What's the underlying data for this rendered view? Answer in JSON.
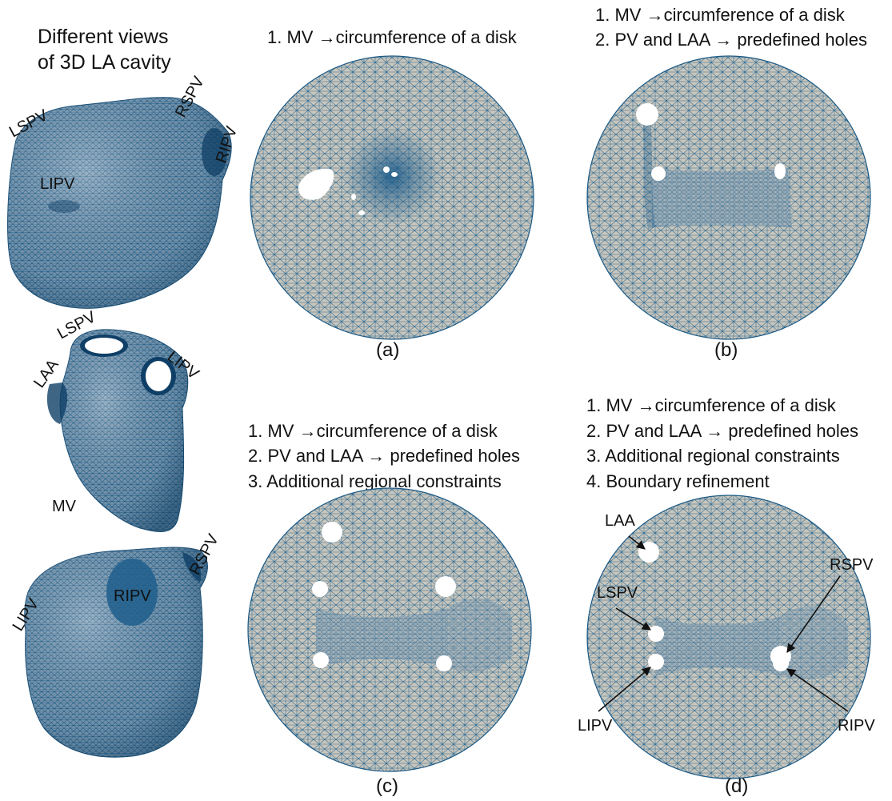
{
  "left_title": [
    "Different views",
    "of 3D LA cavity"
  ],
  "views": {
    "top": [
      "LSPV",
      "RSPV",
      "RIPV",
      "LIPV"
    ],
    "middle": [
      "LSPV",
      "LAA",
      "LIPV",
      "MV"
    ],
    "bottom": [
      "LIPV",
      "RSPV",
      "RIPV"
    ]
  },
  "panels": {
    "a": {
      "caption": "(a)",
      "steps": [
        "1. MV →circumference of a disk"
      ]
    },
    "b": {
      "caption": "(b)",
      "steps": [
        "1. MV →circumference of a disk",
        "2. PV and LAA → predefined holes"
      ]
    },
    "c": {
      "caption": "(c)",
      "steps": [
        "1. MV →circumference of a disk",
        "2. PV and LAA → predefined holes",
        "3. Additional regional constraints"
      ]
    },
    "d": {
      "caption": "(d)",
      "steps": [
        "1. MV →circumference of a disk",
        "2. PV and LAA → predefined holes",
        "3. Additional regional constraints",
        "4. Boundary refinement"
      ],
      "labels": [
        "LAA",
        "LSPV",
        "RSPV",
        "LIPV",
        "RIPV"
      ]
    }
  },
  "colors": {
    "mesh_fill": "#c9c6bc",
    "mesh_line": "#1c5a86",
    "dense": "#1a5a8a",
    "hole": "#ffffff"
  }
}
